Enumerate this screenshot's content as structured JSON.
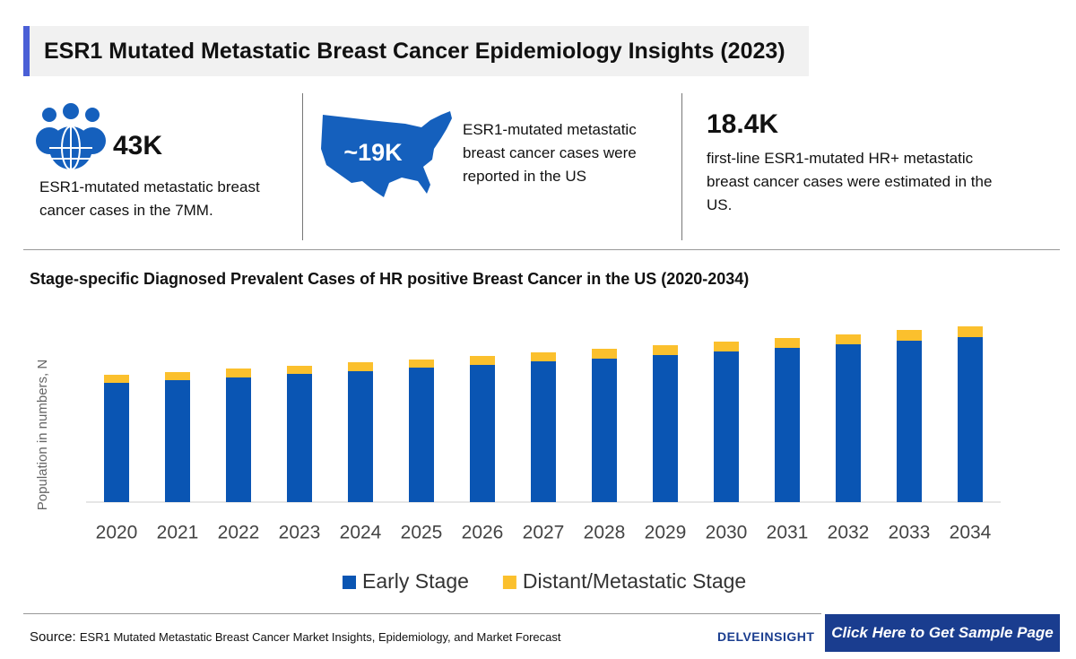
{
  "header": {
    "title": "ESR1 Mutated Metastatic Breast Cancer Epidemiology Insights (2023)"
  },
  "stats": [
    {
      "value": "43K",
      "text": "ESR1-mutated metastatic breast cancer cases in the 7MM."
    },
    {
      "value": "~19K",
      "text": "ESR1-mutated metastatic breast cancer cases were reported in the US"
    },
    {
      "value": "18.4K",
      "text": "first-line ESR1-mutated HR+ metastatic breast cancer cases were estimated in the US."
    }
  ],
  "chart_data": {
    "type": "stacked-bar",
    "title": "Stage-specific Diagnosed Prevalent Cases of HR positive Breast Cancer in the US (2020-2034)",
    "y_label": "Population in numbers, N",
    "categories": [
      "2020",
      "2021",
      "2022",
      "2023",
      "2024",
      "2025",
      "2026",
      "2027",
      "2028",
      "2029",
      "2030",
      "2031",
      "2032",
      "2033",
      "2034"
    ],
    "series": [
      {
        "name": "Early Stage",
        "color": "#0a55b3",
        "values": [
          133,
          136,
          139,
          143,
          146,
          150,
          153,
          157,
          160,
          164,
          168,
          172,
          176,
          180,
          184
        ]
      },
      {
        "name": "Distant/Metastatic Stage",
        "color": "#fbc02d",
        "values": [
          9,
          9,
          10,
          9,
          10,
          9,
          10,
          10,
          11,
          11,
          11,
          11,
          11,
          12,
          12
        ]
      }
    ],
    "ylim": [
      0,
      200
    ]
  },
  "footer": {
    "source_label": "Source:",
    "source": "ESR1 Mutated Metastatic Breast Cancer Market Insights, Epidemiology, and Market Forecast",
    "logo": "DELVEINSIGHT",
    "button": "Click Here to Get Sample Page"
  }
}
